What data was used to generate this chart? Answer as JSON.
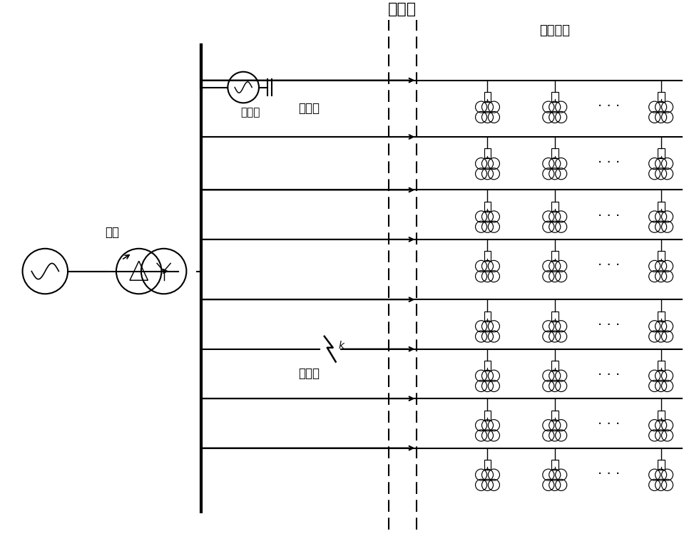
{
  "title": "",
  "bg_color": "#ffffff",
  "line_color": "#000000",
  "fig_width": 9.8,
  "fig_height": 7.59,
  "huiji_zhan_label": "汇集站",
  "huiji_dianlan_label": "汇集电缆",
  "jiakongxian_label1": "架空线",
  "jiakongxian_label2": "架空线",
  "zhubain_label": "主变",
  "jiedibain_label": "接地变",
  "fault_label": "k",
  "num_feeder_rows": 8,
  "num_pv_per_row": 3
}
